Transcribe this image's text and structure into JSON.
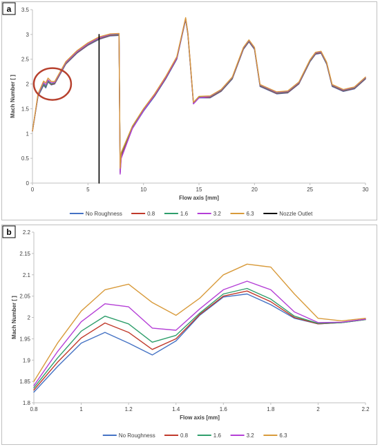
{
  "colors": {
    "no_roughness": "#4472C4",
    "r0_8": "#C0392B",
    "r1_6": "#2E9E6B",
    "r3_2": "#B43ED6",
    "r6_3": "#D89A3A",
    "nozzle_outlet": "#000000",
    "highlight_circle": "#B7412E",
    "frame": "#bfbfbf",
    "axis": "#bfbfbf",
    "text": "#404040"
  },
  "chart_data": [
    {
      "panel": "a",
      "type": "line",
      "xlabel": "Flow axis [mm]",
      "ylabel": "Mach Number [ ]",
      "xlim": [
        0,
        30
      ],
      "ylim": [
        0,
        3.5
      ],
      "x_ticks": [
        "0",
        "5",
        "10",
        "15",
        "20",
        "25",
        "30"
      ],
      "y_ticks": [
        "0",
        "0.5",
        "1",
        "1.5",
        "2",
        "2.5",
        "3",
        "3.5"
      ],
      "grid": false,
      "legend_position": "bottom",
      "annotations": [
        "circle-around-1-2mm-region"
      ],
      "series": [
        {
          "name": "No Roughness",
          "x": [
            0,
            0.5,
            1,
            1.2,
            1.4,
            1.7,
            2,
            2.5,
            3,
            4,
            5,
            6,
            7,
            7.8,
            7.9,
            8,
            9,
            10,
            11,
            12,
            13,
            13.8,
            14,
            14.2,
            14.5,
            15,
            16,
            17,
            18,
            19,
            19.5,
            20,
            20.5,
            21,
            22,
            23,
            24,
            25,
            25.5,
            26,
            26.5,
            27,
            28,
            29,
            30
          ],
          "y": [
            1.05,
            1.75,
            1.97,
            1.92,
            2.04,
            1.98,
            2.0,
            2.2,
            2.4,
            2.62,
            2.78,
            2.9,
            2.97,
            2.98,
            0.2,
            0.55,
            1.1,
            1.45,
            1.75,
            2.1,
            2.5,
            3.3,
            3.0,
            2.45,
            1.6,
            1.72,
            1.72,
            1.85,
            2.1,
            2.7,
            2.85,
            2.7,
            1.95,
            1.9,
            1.8,
            1.82,
            2.0,
            2.45,
            2.6,
            2.62,
            2.4,
            1.95,
            1.85,
            1.9,
            2.1
          ]
        },
        {
          "name": "0.8",
          "x": [
            0,
            0.5,
            1,
            1.2,
            1.4,
            1.7,
            2,
            2.5,
            3,
            4,
            5,
            6,
            7,
            7.8,
            7.9,
            8,
            9,
            10,
            11,
            12,
            13,
            13.8,
            14,
            14.2,
            14.5,
            15,
            16,
            17,
            18,
            19,
            19.5,
            20,
            20.5,
            21,
            22,
            23,
            24,
            25,
            25.5,
            26,
            26.5,
            27,
            28,
            29,
            30
          ],
          "y": [
            1.05,
            1.76,
            1.99,
            1.94,
            2.05,
            1.99,
            2.01,
            2.21,
            2.41,
            2.63,
            2.79,
            2.91,
            2.98,
            2.99,
            0.22,
            0.57,
            1.12,
            1.47,
            1.77,
            2.12,
            2.52,
            3.31,
            3.01,
            2.46,
            1.61,
            1.73,
            1.73,
            1.86,
            2.11,
            2.71,
            2.86,
            2.71,
            1.96,
            1.91,
            1.81,
            1.83,
            2.01,
            2.46,
            2.61,
            2.63,
            2.41,
            1.96,
            1.86,
            1.91,
            2.11
          ]
        },
        {
          "name": "1.6",
          "x": [
            0,
            0.5,
            1,
            1.2,
            1.4,
            1.7,
            2,
            2.5,
            3,
            4,
            5,
            6,
            7,
            7.8,
            7.9,
            8,
            9,
            10,
            11,
            12,
            13,
            13.8,
            14,
            14.2,
            14.5,
            15,
            16,
            17,
            18,
            19,
            19.5,
            20,
            20.5,
            21,
            22,
            23,
            24,
            25,
            25.5,
            26,
            26.5,
            27,
            28,
            29,
            30
          ],
          "y": [
            1.05,
            1.77,
            2.0,
            1.95,
            2.06,
            2.0,
            2.02,
            2.22,
            2.42,
            2.64,
            2.8,
            2.92,
            2.99,
            3.0,
            0.24,
            0.6,
            1.14,
            1.49,
            1.79,
            2.14,
            2.54,
            3.32,
            3.02,
            2.47,
            1.62,
            1.74,
            1.74,
            1.87,
            2.12,
            2.72,
            2.87,
            2.72,
            1.97,
            1.92,
            1.82,
            1.84,
            2.02,
            2.47,
            2.62,
            2.64,
            2.42,
            1.97,
            1.87,
            1.92,
            2.12
          ]
        },
        {
          "name": "3.2",
          "x": [
            0,
            0.5,
            1,
            1.2,
            1.4,
            1.7,
            2,
            2.5,
            3,
            4,
            5,
            6,
            7,
            7.8,
            7.9,
            8,
            9,
            10,
            11,
            12,
            13,
            13.8,
            14,
            14.2,
            14.5,
            15,
            16,
            17,
            18,
            19,
            19.5,
            20,
            20.5,
            21,
            22,
            23,
            24,
            25,
            25.5,
            26,
            26.5,
            27,
            28,
            29,
            30
          ],
          "y": [
            1.05,
            1.78,
            2.03,
            1.98,
            2.08,
            2.02,
            2.03,
            2.23,
            2.43,
            2.65,
            2.81,
            2.93,
            3.0,
            3.01,
            0.18,
            0.5,
            1.1,
            1.46,
            1.78,
            2.13,
            2.53,
            3.33,
            3.03,
            2.48,
            1.6,
            1.72,
            1.75,
            1.88,
            2.13,
            2.73,
            2.88,
            2.73,
            1.98,
            1.93,
            1.83,
            1.85,
            2.03,
            2.48,
            2.63,
            2.65,
            2.43,
            1.98,
            1.88,
            1.93,
            2.13
          ]
        },
        {
          "name": "6.3",
          "x": [
            0,
            0.5,
            1,
            1.2,
            1.4,
            1.7,
            2,
            2.5,
            3,
            4,
            5,
            6,
            7,
            7.8,
            7.9,
            8,
            9,
            10,
            11,
            12,
            13,
            13.8,
            14,
            14.2,
            14.5,
            15,
            16,
            17,
            18,
            19,
            19.5,
            20,
            20.5,
            21,
            22,
            23,
            24,
            25,
            25.5,
            26,
            26.5,
            27,
            28,
            29,
            30
          ],
          "y": [
            1.05,
            1.8,
            2.06,
            2.02,
            2.12,
            2.05,
            2.05,
            2.25,
            2.45,
            2.67,
            2.83,
            2.95,
            3.01,
            3.02,
            0.3,
            0.62,
            1.15,
            1.5,
            1.8,
            2.15,
            2.55,
            3.34,
            3.04,
            2.49,
            1.63,
            1.75,
            1.76,
            1.89,
            2.14,
            2.74,
            2.89,
            2.74,
            1.99,
            1.94,
            1.84,
            1.86,
            2.04,
            2.49,
            2.64,
            2.66,
            2.44,
            1.99,
            1.89,
            1.94,
            2.14
          ]
        },
        {
          "name": "Nozzle Outlet",
          "x": [
            6,
            6
          ],
          "y": [
            0,
            3.0
          ]
        }
      ]
    },
    {
      "panel": "b",
      "type": "line",
      "xlabel": "Flow axis [mm]",
      "ylabel": "Mach Number [ ]",
      "xlim": [
        0.8,
        2.2
      ],
      "ylim": [
        1.8,
        2.2
      ],
      "x_ticks": [
        "0.8",
        "1",
        "1.2",
        "1.4",
        "1.6",
        "1.8",
        "2",
        "2.2"
      ],
      "y_ticks": [
        "1.8",
        "1.85",
        "1.9",
        "1.95",
        "2",
        "2.05",
        "2.1",
        "2.15",
        "2.2"
      ],
      "grid": false,
      "legend_position": "bottom",
      "series": [
        {
          "name": "No Roughness",
          "x": [
            0.8,
            0.9,
            1.0,
            1.1,
            1.2,
            1.3,
            1.4,
            1.5,
            1.6,
            1.7,
            1.8,
            1.9,
            2.0,
            2.1,
            2.2
          ],
          "y": [
            1.825,
            1.885,
            1.94,
            1.965,
            1.94,
            1.912,
            1.945,
            2.005,
            2.048,
            2.055,
            2.03,
            1.998,
            1.985,
            1.988,
            1.995
          ]
        },
        {
          "name": "0.8",
          "x": [
            0.8,
            0.9,
            1.0,
            1.1,
            1.2,
            1.3,
            1.4,
            1.5,
            1.6,
            1.7,
            1.8,
            1.9,
            2.0,
            2.1,
            2.2
          ],
          "y": [
            1.83,
            1.895,
            1.952,
            1.987,
            1.965,
            1.925,
            1.95,
            2.007,
            2.05,
            2.062,
            2.037,
            2.0,
            1.985,
            1.988,
            1.995
          ]
        },
        {
          "name": "1.6",
          "x": [
            0.8,
            0.9,
            1.0,
            1.1,
            1.2,
            1.3,
            1.4,
            1.5,
            1.6,
            1.7,
            1.8,
            1.9,
            2.0,
            2.1,
            2.2
          ],
          "y": [
            1.835,
            1.905,
            1.968,
            2.003,
            1.985,
            1.942,
            1.958,
            2.01,
            2.055,
            2.068,
            2.043,
            2.003,
            1.986,
            1.988,
            1.995
          ]
        },
        {
          "name": "3.2",
          "x": [
            0.8,
            0.9,
            1.0,
            1.1,
            1.2,
            1.3,
            1.4,
            1.5,
            1.6,
            1.7,
            1.8,
            1.9,
            2.0,
            2.1,
            2.2
          ],
          "y": [
            1.84,
            1.92,
            1.99,
            2.032,
            2.025,
            1.975,
            1.97,
            2.02,
            2.065,
            2.085,
            2.065,
            2.013,
            1.988,
            1.989,
            1.996
          ]
        },
        {
          "name": "6.3",
          "x": [
            0.8,
            0.9,
            1.0,
            1.1,
            1.2,
            1.3,
            1.4,
            1.5,
            1.6,
            1.7,
            1.8,
            1.9,
            2.0,
            2.1,
            2.2
          ],
          "y": [
            1.85,
            1.94,
            2.015,
            2.065,
            2.078,
            2.035,
            2.005,
            2.045,
            2.1,
            2.125,
            2.118,
            2.055,
            1.998,
            1.992,
            1.998
          ]
        }
      ]
    }
  ]
}
